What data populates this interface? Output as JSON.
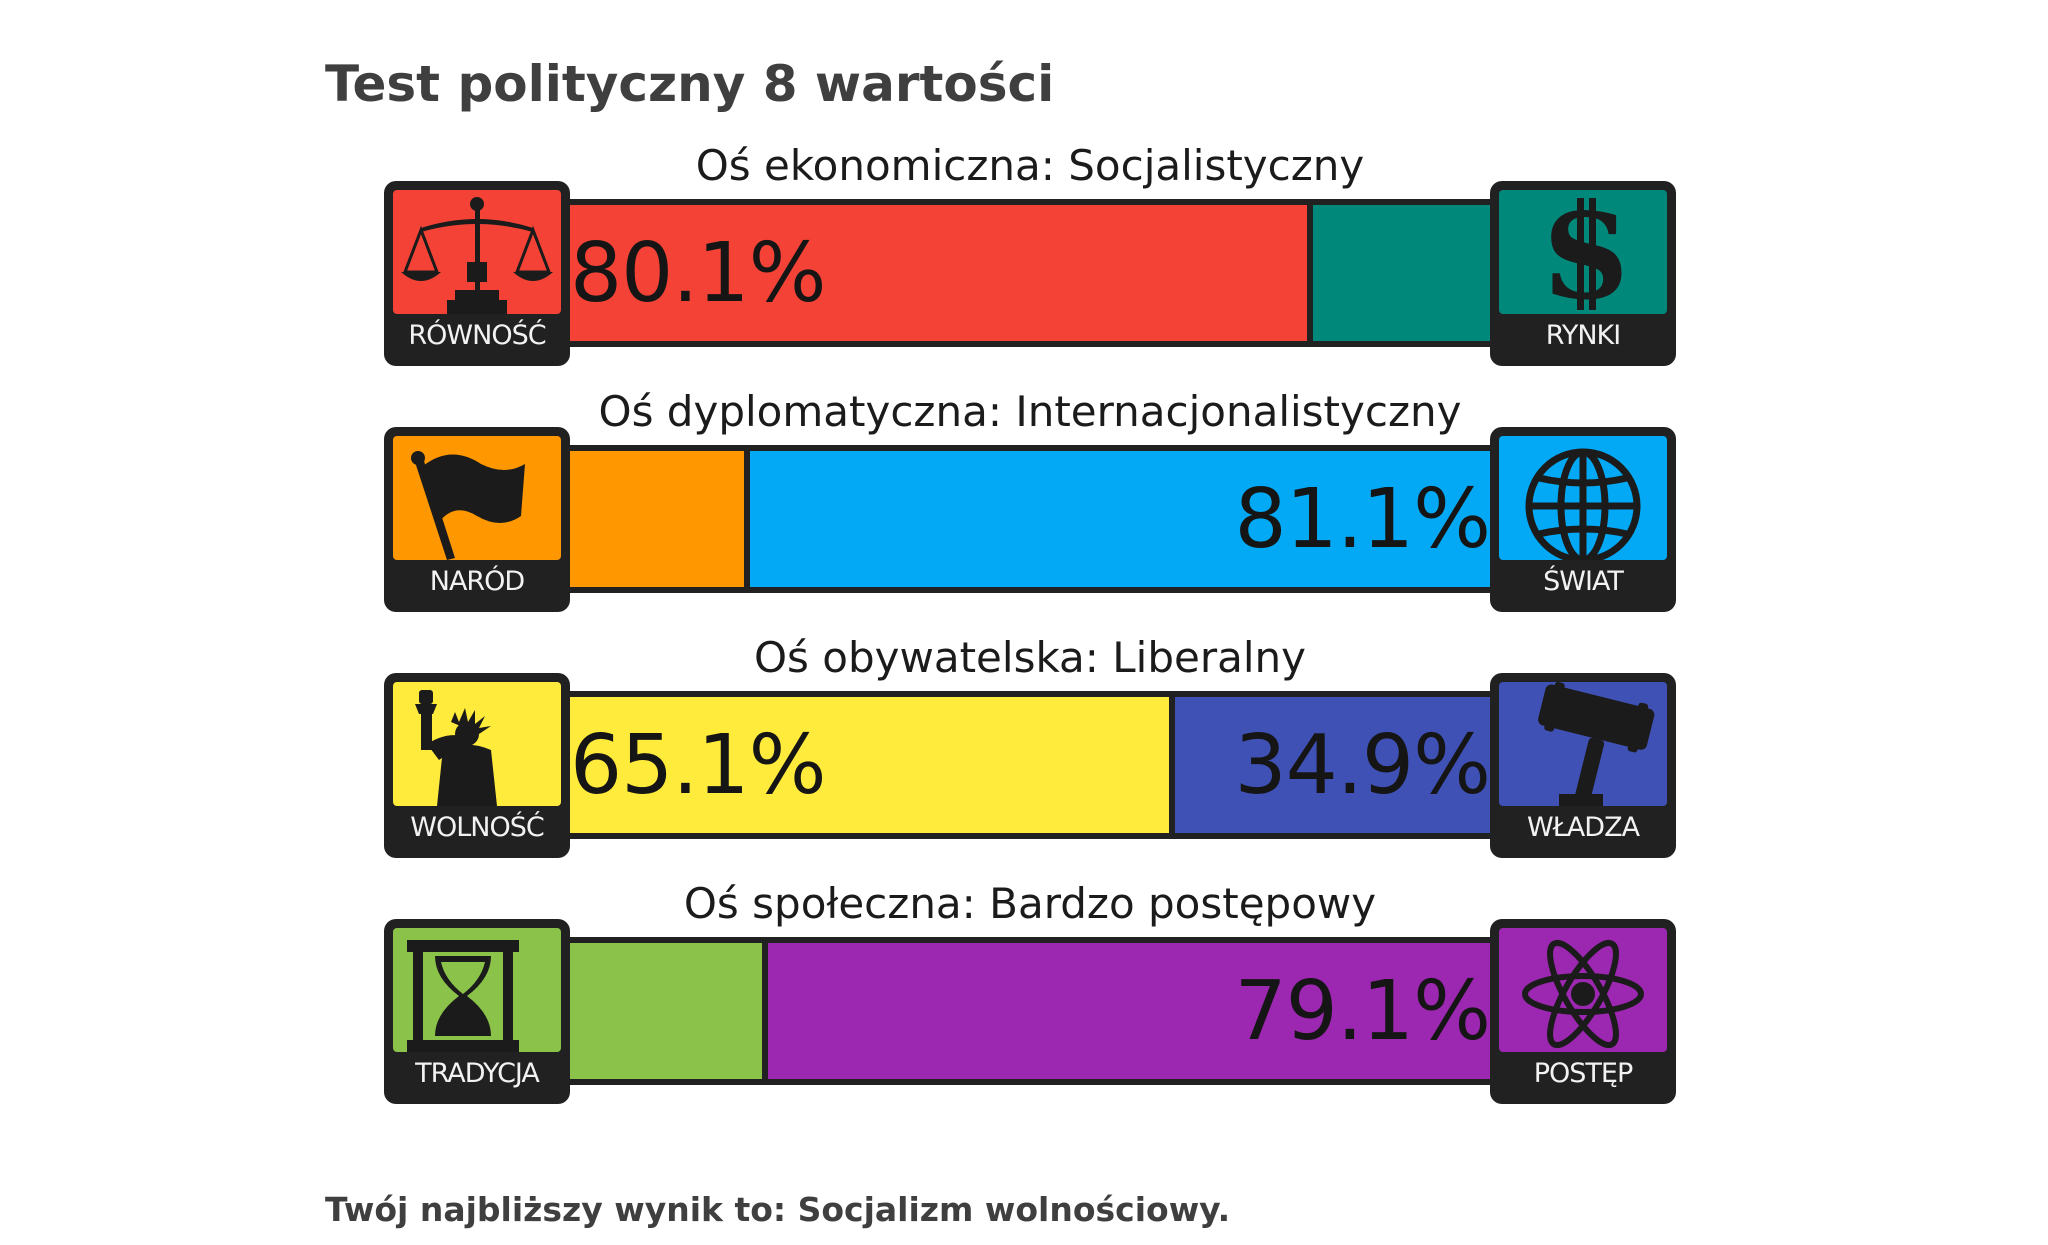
{
  "title": "Test polityczny 8 wartości",
  "result_text": "Twój najbliższy wynik to: Socjalizm wolnościowy.",
  "chart_data": {
    "type": "bar",
    "orientation": "horizontal",
    "stacked": true,
    "xlim": [
      0,
      100
    ],
    "unit": "%",
    "axes": [
      {
        "label": "Oś ekonomiczna: Socjalistyczny",
        "left": {
          "name": "RÓWNOŚĆ",
          "value": 80.1,
          "value_label": "80.1%",
          "color": "#f44336",
          "icon": "scales-icon"
        },
        "right": {
          "name": "RYNKI",
          "value": 19.9,
          "value_label": "",
          "color": "#00897b",
          "icon": "dollar-icon"
        }
      },
      {
        "label": "Oś dyplomatyczna: Internacjonalistyczny",
        "left": {
          "name": "NARÓD",
          "value": 18.9,
          "value_label": "",
          "color": "#ff9800",
          "icon": "flag-icon"
        },
        "right": {
          "name": "ŚWIAT",
          "value": 81.1,
          "value_label": "81.1%",
          "color": "#03a9f4",
          "icon": "globe-icon"
        }
      },
      {
        "label": "Oś obywatelska: Liberalny",
        "left": {
          "name": "WOLNOŚĆ",
          "value": 65.1,
          "value_label": "65.1%",
          "color": "#ffeb3b",
          "icon": "liberty-statue-icon"
        },
        "right": {
          "name": "WŁADZA",
          "value": 34.9,
          "value_label": "34.9%",
          "color": "#3f51b5",
          "icon": "gavel-icon"
        }
      },
      {
        "label": "Oś społeczna: Bardzo postępowy",
        "left": {
          "name": "TRADYCJA",
          "value": 20.9,
          "value_label": "",
          "color": "#8bc34a",
          "icon": "hourglass-icon"
        },
        "right": {
          "name": "POSTĘP",
          "value": 79.1,
          "value_label": "79.1%",
          "color": "#9c27b0",
          "icon": "atom-icon"
        }
      }
    ]
  }
}
